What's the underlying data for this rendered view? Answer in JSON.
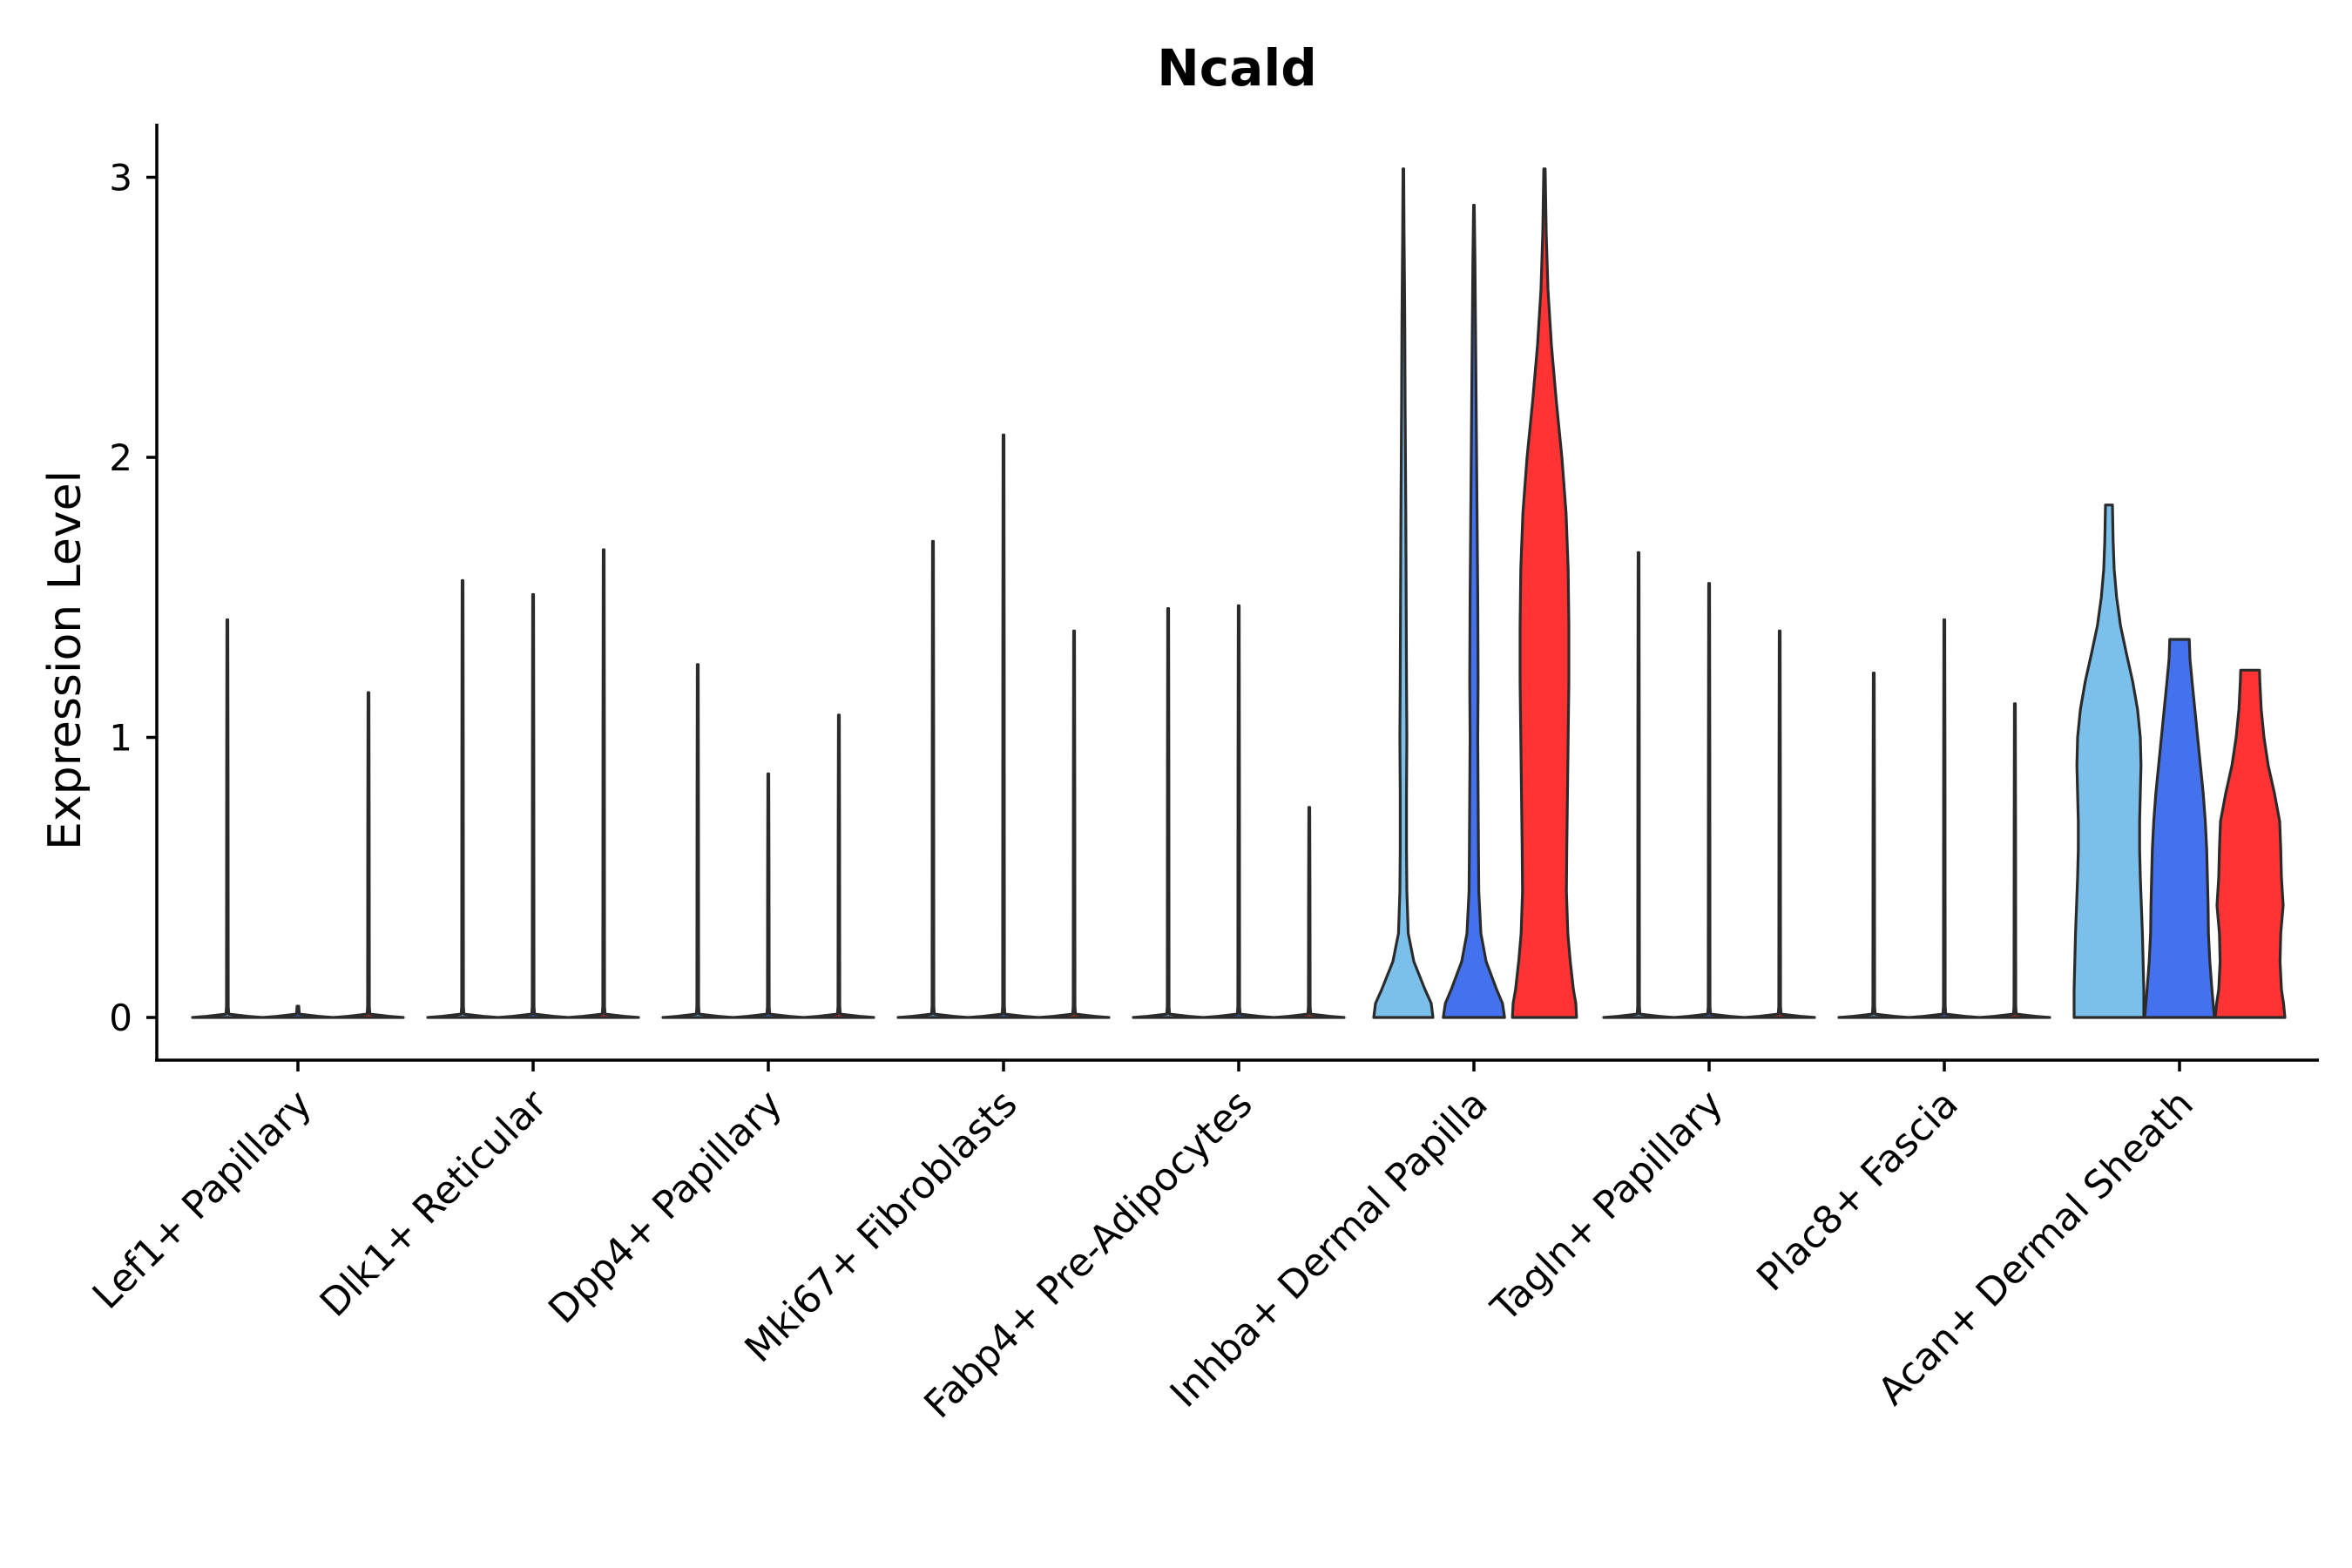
{
  "chart_data": {
    "type": "violin",
    "title": "Ncald",
    "xlabel": "",
    "ylabel": "Expression Level",
    "ylim": [
      -0.15,
      3.2
    ],
    "yticks": [
      0,
      1,
      2,
      3
    ],
    "grid": false,
    "legend": "none",
    "colors": {
      "subgroup1": "#7BBFEB",
      "subgroup2": "#4472EE",
      "subgroup3": "#FF3333",
      "outline": "#2b2b2b"
    },
    "categories": [
      "Lef1+ Papillary",
      "Dlk1+ Reticular",
      "Dpp4+ Papillary",
      "Mki67+ Fibroblasts",
      "Fabp4+ Pre-Adipocytes",
      "Inhba+ Dermal Papilla",
      "Tagln+ Papillary",
      "Plac8+ Fascia",
      "Acan+ Dermal Sheath"
    ],
    "groups": [
      {
        "category": "Lef1+ Papillary",
        "violins": [
          {
            "max": 1.42,
            "profile": []
          },
          {
            "max": 0,
            "profile": []
          },
          {
            "max": 1.16,
            "profile": []
          }
        ]
      },
      {
        "category": "Dlk1+ Reticular",
        "violins": [
          {
            "max": 1.56,
            "profile": []
          },
          {
            "max": 1.51,
            "profile": []
          },
          {
            "max": 1.67,
            "profile": []
          }
        ]
      },
      {
        "category": "Dpp4+ Papillary",
        "violins": [
          {
            "max": 1.26,
            "profile": []
          },
          {
            "max": 0.87,
            "profile": []
          },
          {
            "max": 1.08,
            "profile": []
          }
        ]
      },
      {
        "category": "Mki67+ Fibroblasts",
        "violins": [
          {
            "max": 1.7,
            "profile": []
          },
          {
            "max": 2.08,
            "profile": []
          },
          {
            "max": 1.38,
            "profile": []
          }
        ]
      },
      {
        "category": "Fabp4+ Pre-Adipocytes",
        "violins": [
          {
            "max": 1.46,
            "profile": []
          },
          {
            "max": 1.47,
            "profile": []
          },
          {
            "max": 0.75,
            "profile": []
          }
        ]
      },
      {
        "category": "Inhba+ Dermal Papilla",
        "violins": [
          {
            "max": 3.03,
            "profile": [
              [
                0,
                0.85
              ],
              [
                0.05,
                0.8
              ],
              [
                0.1,
                0.62
              ],
              [
                0.2,
                0.3
              ],
              [
                0.3,
                0.14
              ],
              [
                0.45,
                0.1
              ],
              [
                0.6,
                0.09
              ],
              [
                0.8,
                0.09
              ],
              [
                1.0,
                0.1
              ],
              [
                1.2,
                0.09
              ],
              [
                1.5,
                0.08
              ],
              [
                1.8,
                0.07
              ],
              [
                2.2,
                0.05
              ],
              [
                2.5,
                0.04
              ],
              [
                2.8,
                0.02
              ],
              [
                3.03,
                0.01
              ]
            ]
          },
          {
            "max": 2.9,
            "profile": [
              [
                0,
                0.88
              ],
              [
                0.05,
                0.82
              ],
              [
                0.1,
                0.65
              ],
              [
                0.2,
                0.35
              ],
              [
                0.3,
                0.2
              ],
              [
                0.45,
                0.14
              ],
              [
                0.6,
                0.13
              ],
              [
                0.8,
                0.12
              ],
              [
                1.0,
                0.11
              ],
              [
                1.2,
                0.12
              ],
              [
                1.5,
                0.11
              ],
              [
                1.8,
                0.09
              ],
              [
                2.1,
                0.07
              ],
              [
                2.4,
                0.05
              ],
              [
                2.7,
                0.03
              ],
              [
                2.9,
                0.01
              ]
            ]
          },
          {
            "max": 3.03,
            "profile": [
              [
                0,
                0.92
              ],
              [
                0.05,
                0.9
              ],
              [
                0.1,
                0.83
              ],
              [
                0.2,
                0.74
              ],
              [
                0.3,
                0.67
              ],
              [
                0.45,
                0.63
              ],
              [
                0.6,
                0.64
              ],
              [
                0.8,
                0.66
              ],
              [
                1.0,
                0.68
              ],
              [
                1.2,
                0.7
              ],
              [
                1.4,
                0.7
              ],
              [
                1.6,
                0.68
              ],
              [
                1.8,
                0.62
              ],
              [
                2.0,
                0.5
              ],
              [
                2.2,
                0.34
              ],
              [
                2.4,
                0.2
              ],
              [
                2.6,
                0.1
              ],
              [
                2.8,
                0.05
              ],
              [
                3.03,
                0.02
              ]
            ]
          }
        ]
      },
      {
        "category": "Tagln+ Papillary",
        "violins": [
          {
            "max": 1.66,
            "profile": []
          },
          {
            "max": 1.55,
            "profile": []
          },
          {
            "max": 1.38,
            "profile": []
          }
        ]
      },
      {
        "category": "Plac8+ Fascia",
        "violins": [
          {
            "max": 1.23,
            "profile": []
          },
          {
            "max": 1.42,
            "profile": []
          },
          {
            "max": 1.12,
            "profile": []
          }
        ]
      },
      {
        "category": "Acan+ Dermal Sheath",
        "violins": [
          {
            "max": 1.83,
            "profile": [
              [
                0,
                1.0
              ],
              [
                0.1,
                1.0
              ],
              [
                0.2,
                0.98
              ],
              [
                0.3,
                0.96
              ],
              [
                0.4,
                0.93
              ],
              [
                0.5,
                0.9
              ],
              [
                0.6,
                0.88
              ],
              [
                0.7,
                0.88
              ],
              [
                0.8,
                0.9
              ],
              [
                0.9,
                0.92
              ],
              [
                1.0,
                0.9
              ],
              [
                1.1,
                0.82
              ],
              [
                1.2,
                0.68
              ],
              [
                1.3,
                0.5
              ],
              [
                1.4,
                0.33
              ],
              [
                1.5,
                0.22
              ],
              [
                1.6,
                0.15
              ],
              [
                1.7,
                0.12
              ],
              [
                1.83,
                0.1
              ]
            ]
          },
          {
            "max": 1.35,
            "profile": [
              [
                0,
                1.0
              ],
              [
                0.1,
                0.93
              ],
              [
                0.2,
                0.87
              ],
              [
                0.3,
                0.83
              ],
              [
                0.4,
                0.82
              ],
              [
                0.5,
                0.8
              ],
              [
                0.6,
                0.78
              ],
              [
                0.7,
                0.74
              ],
              [
                0.8,
                0.68
              ],
              [
                0.9,
                0.6
              ],
              [
                1.0,
                0.52
              ],
              [
                1.1,
                0.44
              ],
              [
                1.2,
                0.36
              ],
              [
                1.28,
                0.3
              ],
              [
                1.35,
                0.28
              ]
            ]
          },
          {
            "max": 1.24,
            "profile": [
              [
                0,
                1.0
              ],
              [
                0.05,
                0.96
              ],
              [
                0.1,
                0.9
              ],
              [
                0.2,
                0.86
              ],
              [
                0.3,
                0.88
              ],
              [
                0.4,
                0.95
              ],
              [
                0.5,
                0.9
              ],
              [
                0.6,
                0.88
              ],
              [
                0.7,
                0.85
              ],
              [
                0.8,
                0.7
              ],
              [
                0.9,
                0.52
              ],
              [
                1.0,
                0.4
              ],
              [
                1.1,
                0.32
              ],
              [
                1.2,
                0.28
              ],
              [
                1.24,
                0.27
              ]
            ]
          }
        ]
      }
    ]
  }
}
